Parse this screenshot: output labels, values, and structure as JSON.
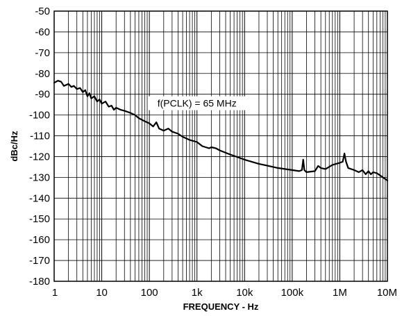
{
  "chart_data": {
    "type": "line",
    "title": "",
    "xlabel": "FREQUENCY - Hz",
    "ylabel": "dBc/Hz",
    "x_scale": "log",
    "xlim": [
      1,
      10000000
    ],
    "ylim": [
      -180,
      -50
    ],
    "grid": true,
    "x_ticks": [
      {
        "value": 1,
        "label": "1"
      },
      {
        "value": 10,
        "label": "10"
      },
      {
        "value": 100,
        "label": "100"
      },
      {
        "value": 1000,
        "label": "1k"
      },
      {
        "value": 10000,
        "label": "10k"
      },
      {
        "value": 100000,
        "label": "100k"
      },
      {
        "value": 1000000,
        "label": "1M"
      },
      {
        "value": 10000000,
        "label": "10M"
      }
    ],
    "y_ticks": [
      {
        "value": -50,
        "label": "-50"
      },
      {
        "value": -60,
        "label": "-60"
      },
      {
        "value": -70,
        "label": "-70"
      },
      {
        "value": -80,
        "label": "-80"
      },
      {
        "value": -90,
        "label": "-90"
      },
      {
        "value": -100,
        "label": "-100"
      },
      {
        "value": -110,
        "label": "-110"
      },
      {
        "value": -120,
        "label": "-120"
      },
      {
        "value": -130,
        "label": "-130"
      },
      {
        "value": -140,
        "label": "-140"
      },
      {
        "value": -150,
        "label": "-150"
      },
      {
        "value": -160,
        "label": "-160"
      },
      {
        "value": -170,
        "label": "-170"
      },
      {
        "value": -180,
        "label": "-180"
      }
    ],
    "annotations": [
      {
        "text": "f(PCLK) = 65 MHz",
        "x": 1000,
        "y": -96
      }
    ],
    "series": [
      {
        "color": "#000000",
        "points": [
          [
            1.0,
            -84.5
          ],
          [
            1.2,
            -83.5
          ],
          [
            1.4,
            -84
          ],
          [
            1.6,
            -86
          ],
          [
            1.8,
            -85.5
          ],
          [
            2.0,
            -85
          ],
          [
            2.3,
            -86.5
          ],
          [
            2.6,
            -86
          ],
          [
            3.0,
            -87.5
          ],
          [
            3.5,
            -87
          ],
          [
            4.0,
            -89
          ],
          [
            4.5,
            -88
          ],
          [
            5.0,
            -91
          ],
          [
            5.5,
            -89.5
          ],
          [
            6.0,
            -92
          ],
          [
            7.0,
            -91
          ],
          [
            8.0,
            -93.5
          ],
          [
            9.0,
            -92.5
          ],
          [
            10.0,
            -94.5
          ],
          [
            12.0,
            -93.5
          ],
          [
            14.0,
            -96
          ],
          [
            16.0,
            -95.5
          ],
          [
            18.0,
            -97.5
          ],
          [
            20.0,
            -96.5
          ],
          [
            25.0,
            -97.5
          ],
          [
            30.0,
            -98
          ],
          [
            40.0,
            -99
          ],
          [
            50.0,
            -100
          ],
          [
            60.0,
            -101.5
          ],
          [
            80.0,
            -103
          ],
          [
            100.0,
            -104
          ],
          [
            120.0,
            -105.5
          ],
          [
            140.0,
            -103.5
          ],
          [
            160.0,
            -106.5
          ],
          [
            200.0,
            -107.5
          ],
          [
            250.0,
            -106.5
          ],
          [
            300.0,
            -108
          ],
          [
            400.0,
            -109
          ],
          [
            500.0,
            -110.5
          ],
          [
            700.0,
            -112
          ],
          [
            1000.0,
            -113
          ],
          [
            1300.0,
            -115
          ],
          [
            1800.0,
            -116
          ],
          [
            2000.0,
            -115.5
          ],
          [
            2500.0,
            -116
          ],
          [
            3000.0,
            -117
          ],
          [
            5000.0,
            -119
          ],
          [
            10000.0,
            -121.5
          ],
          [
            20000.0,
            -123.5
          ],
          [
            50000.0,
            -125.5
          ],
          [
            100000.0,
            -126.5
          ],
          [
            140000.0,
            -127
          ],
          [
            160000.0,
            -126.5
          ],
          [
            170000.0,
            -121.5
          ],
          [
            180000.0,
            -126.5
          ],
          [
            200000.0,
            -127.5
          ],
          [
            300000.0,
            -127
          ],
          [
            350000.0,
            -124.5
          ],
          [
            400000.0,
            -125.5
          ],
          [
            500000.0,
            -126
          ],
          [
            700000.0,
            -124
          ],
          [
            1000000.0,
            -123
          ],
          [
            1150000.0,
            -122.5
          ],
          [
            1250000.0,
            -118.5
          ],
          [
            1350000.0,
            -122.5
          ],
          [
            1500000.0,
            -125.5
          ],
          [
            2000000.0,
            -126.5
          ],
          [
            2500000.0,
            -127.5
          ],
          [
            3000000.0,
            -126.5
          ],
          [
            3500000.0,
            -128.5
          ],
          [
            4000000.0,
            -127
          ],
          [
            4500000.0,
            -128.5
          ],
          [
            5000000.0,
            -127.5
          ],
          [
            6000000.0,
            -128
          ],
          [
            7000000.0,
            -129
          ],
          [
            8000000.0,
            -130
          ],
          [
            10000000.0,
            -131.5
          ]
        ]
      }
    ]
  }
}
